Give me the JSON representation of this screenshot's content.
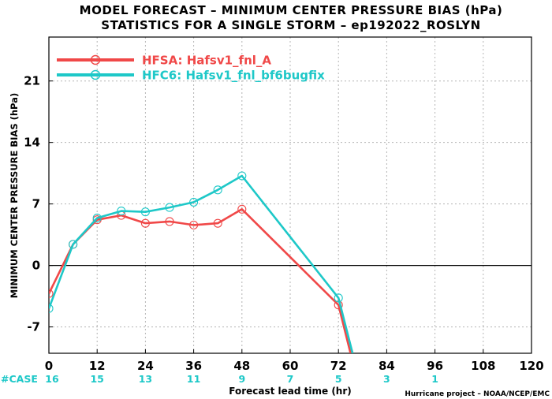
{
  "chart_data": {
    "type": "line",
    "title": "MODEL FORECAST – MINIMUM CENTER PRESSURE BIAS (hPa)",
    "subtitle": "STATISTICS FOR A SINGLE STORM – ep192022_ROSLYN",
    "xlabel": "Forecast lead time (hr)",
    "ylabel": "MINIMUM CENTER PRESSURE BIAS (hPa)",
    "xlim": [
      0,
      120
    ],
    "ylim": [
      -10,
      26
    ],
    "x_ticks": [
      "0",
      "12",
      "24",
      "36",
      "48",
      "60",
      "72",
      "84",
      "96",
      "108",
      "120"
    ],
    "y_ticks": [
      "-7",
      "0",
      "7",
      "14",
      "21"
    ],
    "grid": true,
    "legend_position": "top-left",
    "series": [
      {
        "name": "HFSA: Hafsv1_fnl_A",
        "color": "#f04848",
        "points": [
          [
            0,
            -3.2
          ],
          [
            6,
            2.4
          ],
          [
            12,
            5.2
          ],
          [
            18,
            5.7
          ],
          [
            24,
            4.8
          ],
          [
            30,
            5.0
          ],
          [
            36,
            4.6
          ],
          [
            42,
            4.8
          ],
          [
            48,
            6.4
          ],
          [
            72,
            -4.5
          ],
          [
            75,
            -10
          ]
        ]
      },
      {
        "name": "HFC6: Hafsv1_fnl_bf6bugfix",
        "color": "#1ec8c8",
        "points": [
          [
            0,
            -4.9
          ],
          [
            6,
            2.4
          ],
          [
            12,
            5.4
          ],
          [
            18,
            6.2
          ],
          [
            24,
            6.1
          ],
          [
            30,
            6.6
          ],
          [
            36,
            7.2
          ],
          [
            42,
            8.6
          ],
          [
            48,
            10.2
          ],
          [
            72,
            -3.7
          ],
          [
            75.5,
            -10
          ]
        ]
      }
    ],
    "case_label": "#CASE",
    "cases": [
      {
        "x": 0,
        "n": "16"
      },
      {
        "x": 12,
        "n": "15"
      },
      {
        "x": 24,
        "n": "13"
      },
      {
        "x": 36,
        "n": "11"
      },
      {
        "x": 48,
        "n": "9"
      },
      {
        "x": 60,
        "n": "7"
      },
      {
        "x": 72,
        "n": "5"
      },
      {
        "x": 84,
        "n": "3"
      },
      {
        "x": 96,
        "n": "1"
      }
    ],
    "credit": "Hurricane project – NOAA/NCEP/EMC"
  }
}
